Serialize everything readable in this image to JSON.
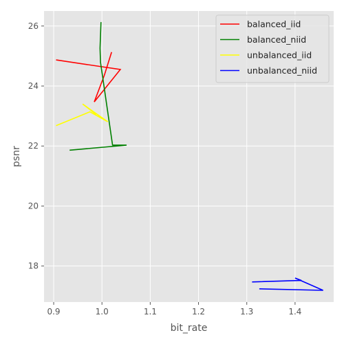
{
  "chart_data": {
    "type": "line",
    "title": "",
    "xlabel": "bit_rate",
    "ylabel": "psnr",
    "xlim": [
      0.88,
      1.48
    ],
    "ylim": [
      16.8,
      26.5
    ],
    "xticks": [
      0.9,
      1.0,
      1.1,
      1.2,
      1.3,
      1.4
    ],
    "xtick_labels": [
      "0.9",
      "1.0",
      "1.1",
      "1.2",
      "1.3",
      "1.4"
    ],
    "yticks": [
      18,
      20,
      22,
      24,
      26
    ],
    "ytick_labels": [
      "18",
      "20",
      "22",
      "24",
      "26"
    ],
    "grid": true,
    "legend_position": "top-right",
    "series": [
      {
        "name": "balanced_iid",
        "color": "#ff0000",
        "x": [
          0.905,
          1.038,
          0.984,
          1.005,
          1.02
        ],
        "y": [
          24.87,
          24.55,
          23.47,
          24.36,
          25.13
        ]
      },
      {
        "name": "balanced_niid",
        "color": "#008000",
        "x": [
          0.933,
          1.051,
          1.022,
          0.997,
          0.996,
          0.998
        ],
        "y": [
          21.86,
          22.03,
          22.03,
          24.79,
          25.26,
          26.13
        ]
      },
      {
        "name": "unbalanced_iid",
        "color": "#ffff00",
        "x": [
          0.905,
          0.975,
          1.012,
          0.96,
          0.988
        ],
        "y": [
          22.68,
          23.14,
          22.81,
          23.4,
          23.05
        ]
      },
      {
        "name": "unbalanced_niid",
        "color": "#0000ff",
        "x": [
          1.311,
          1.413,
          1.4,
          1.458,
          1.326
        ],
        "y": [
          17.47,
          17.52,
          17.6,
          17.19,
          17.24
        ]
      }
    ]
  }
}
